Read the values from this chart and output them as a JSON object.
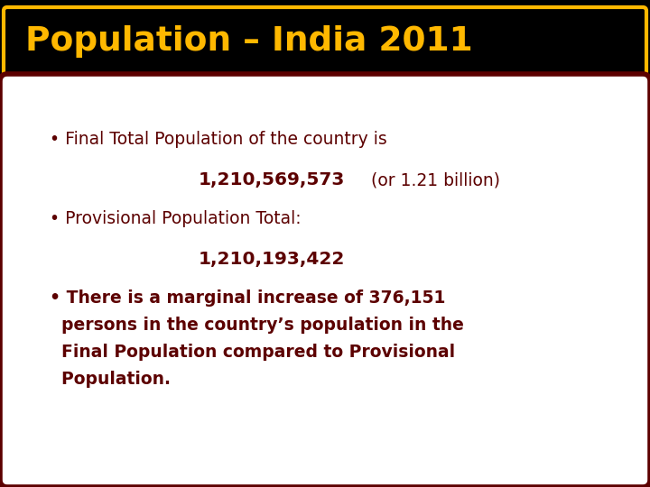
{
  "title": "Population – India 2011",
  "title_color": "#FFB800",
  "title_bg_color": "#000000",
  "title_border_color": "#FFB800",
  "content_bg_color": "#FFFFFF",
  "content_border_color": "#5C0000",
  "outer_bg_color": "#000000",
  "text_color": "#5C0000",
  "bullet1_normal": "• Final Total Population of the country is",
  "bullet1_number": "1,210,569,573",
  "bullet1_suffix": " (or 1.21 billion)",
  "bullet2_normal": "• Provisional Population Total:",
  "bullet2_number": "1,210,193,422",
  "bullet3_line1": "• There is a marginal increase of 376,151",
  "bullet3_line2": "  persons in the country’s population in the",
  "bullet3_line3": "  Final Population compared to Provisional",
  "bullet3_line4": "  Population.",
  "fig_width": 7.2,
  "fig_height": 5.4,
  "dpi": 100
}
